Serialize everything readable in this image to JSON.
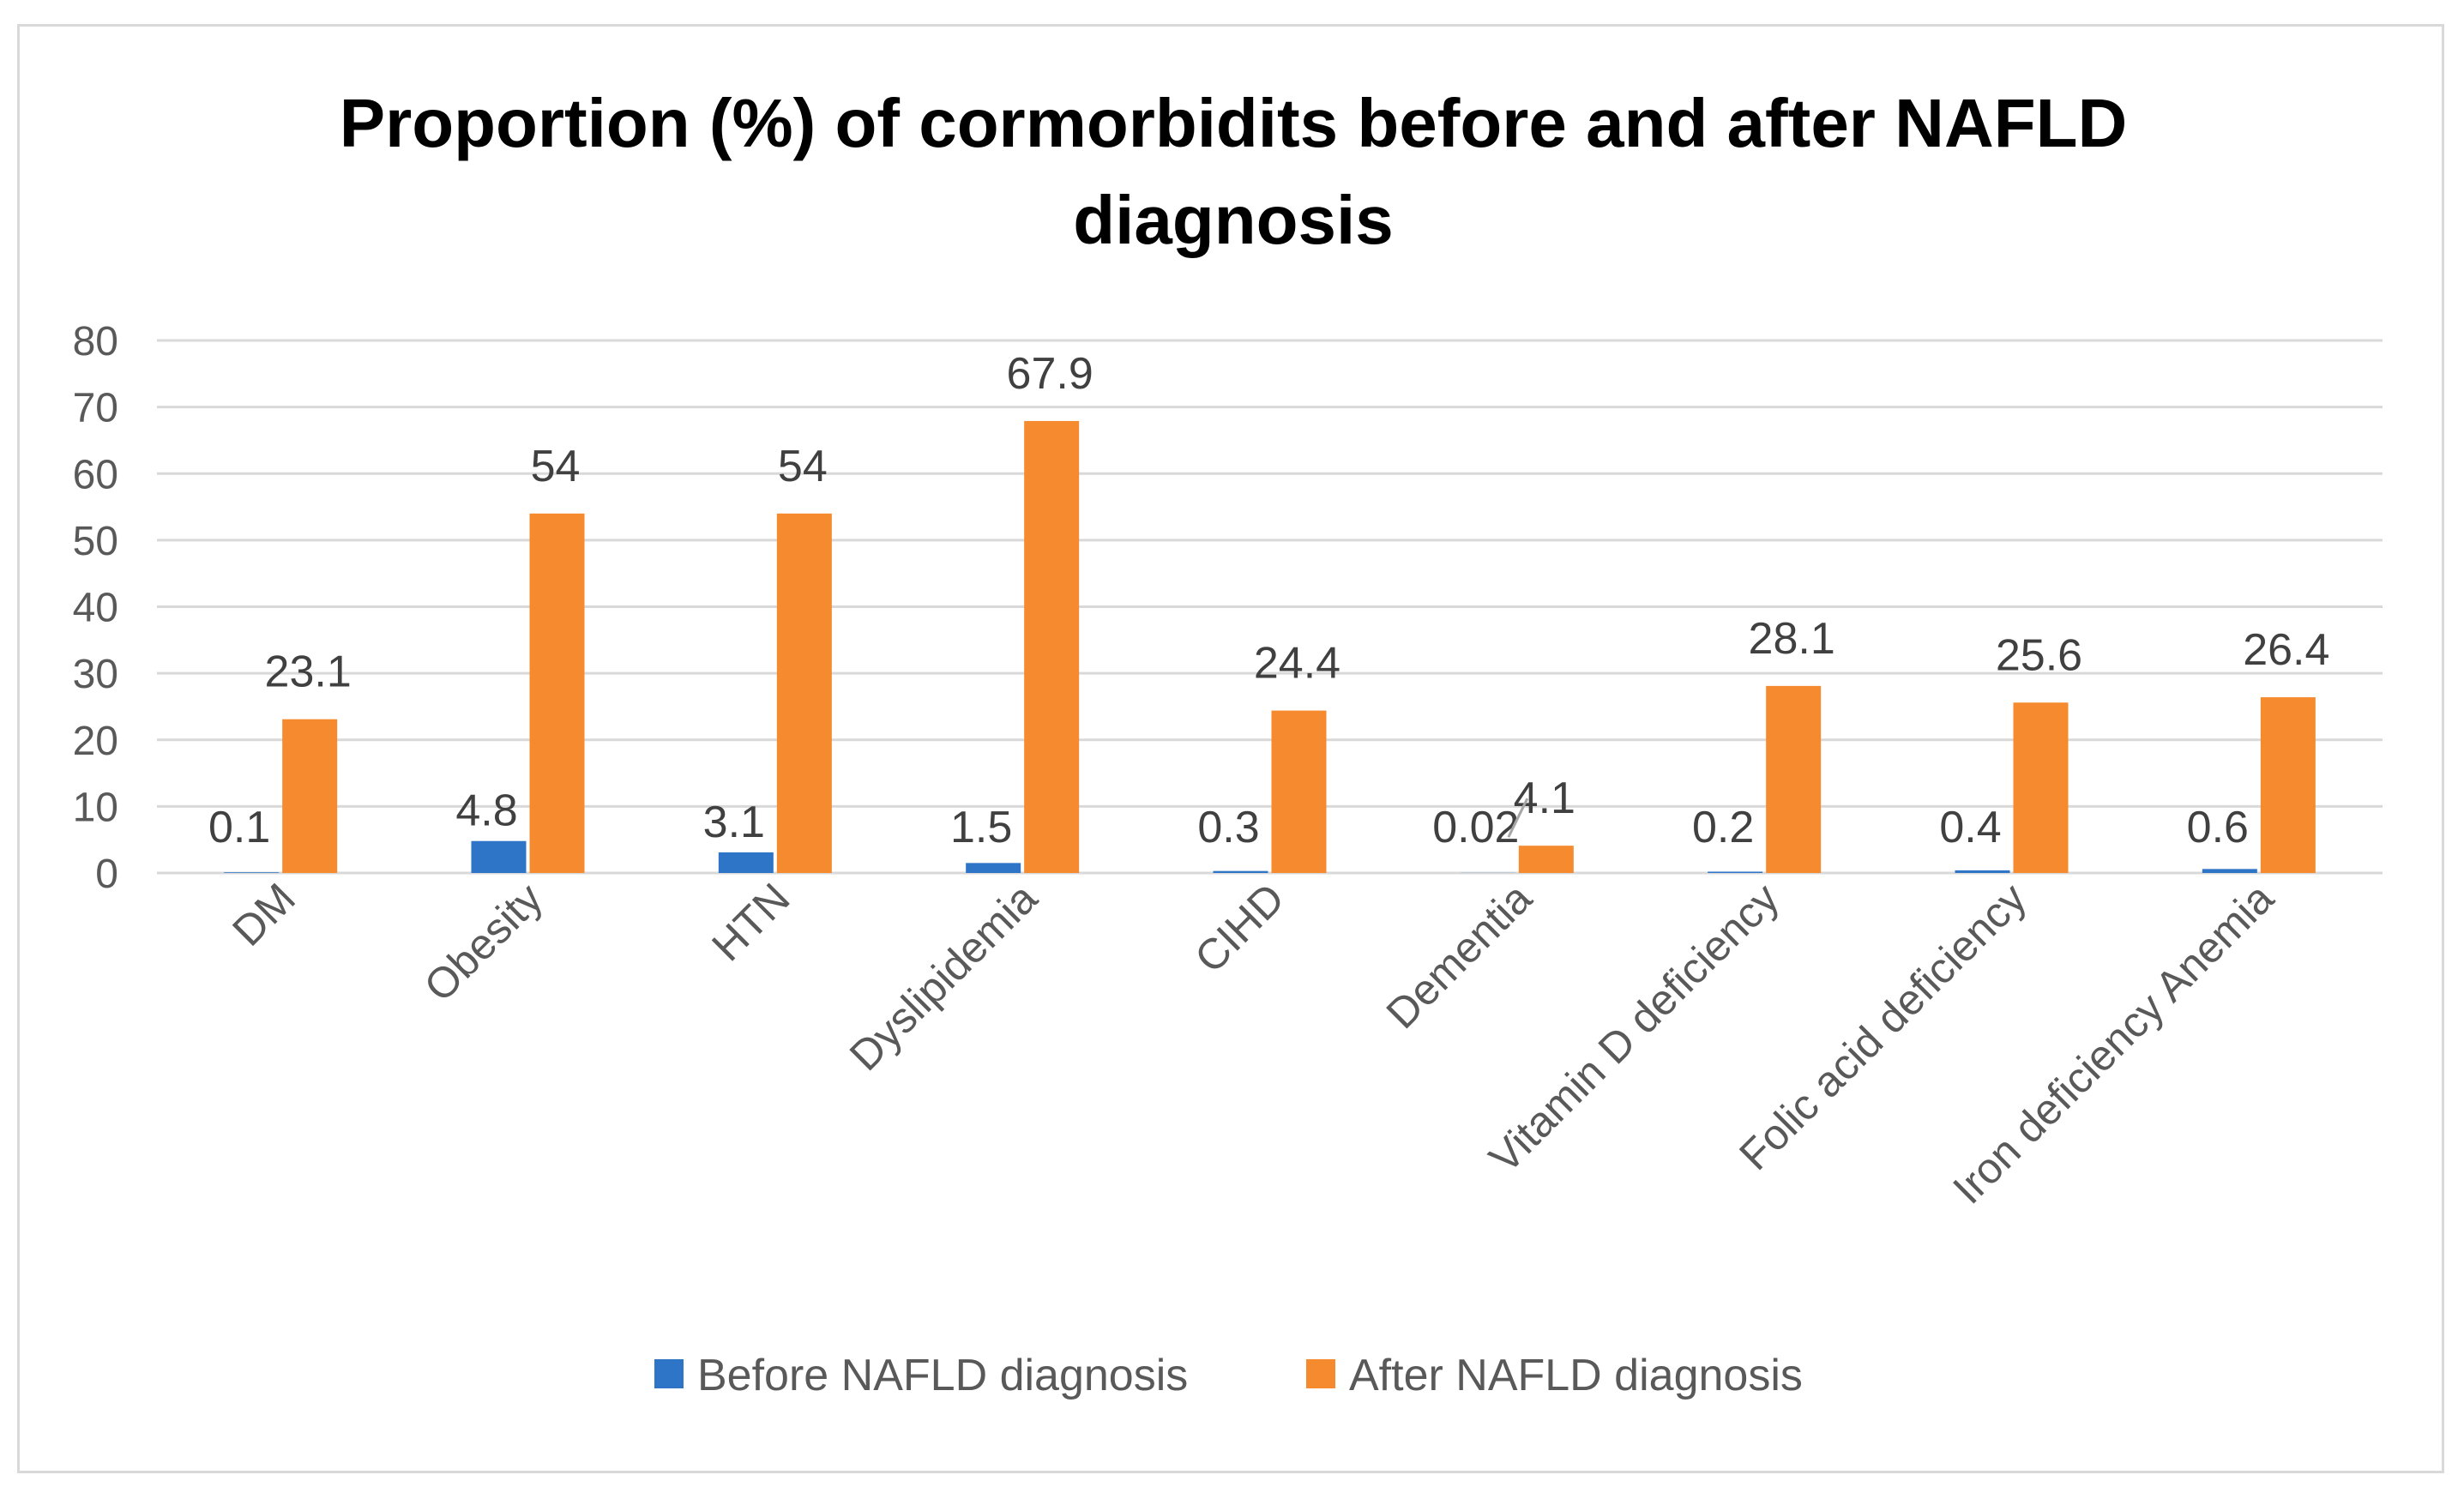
{
  "chart_data": {
    "type": "bar",
    "title": "Proportion (%) of cormorbidits before and after NAFLD diagnosis",
    "title_lines": [
      "Proportion (%) of cormorbidits before and after NAFLD",
      "diagnosis"
    ],
    "xlabel": "",
    "ylabel": "",
    "ylim": [
      0,
      80
    ],
    "yticks": [
      0,
      10,
      20,
      30,
      40,
      50,
      60,
      70,
      80
    ],
    "grid": true,
    "legend_position": "bottom",
    "categories": [
      "DM",
      "Obesity",
      "HTN",
      "Dyslipidemia",
      "CIHD",
      "Dementia",
      "Vitamin D deficiency",
      "Folic acid deficiency",
      "Iron deficiency Anemia"
    ],
    "series": [
      {
        "name": "Before NAFLD diagnosis",
        "color": "#2e75c7",
        "values": [
          0.1,
          4.8,
          3.1,
          1.5,
          0.3,
          0.02,
          0.2,
          0.4,
          0.6
        ],
        "labels": [
          "0.1",
          "4.8",
          "3.1",
          "1.5",
          "0.3",
          "0.02",
          "0.2",
          "0.4",
          "0.6"
        ]
      },
      {
        "name": "After NAFLD diagnosis",
        "color": "#f58a2e",
        "values": [
          23.1,
          54,
          54,
          67.9,
          24.4,
          4.1,
          28.1,
          25.6,
          26.4
        ],
        "labels": [
          "23.1",
          "54",
          "54",
          "67.9",
          "24.4",
          "4.1",
          "28.1",
          "25.6",
          "26.4"
        ]
      }
    ]
  }
}
